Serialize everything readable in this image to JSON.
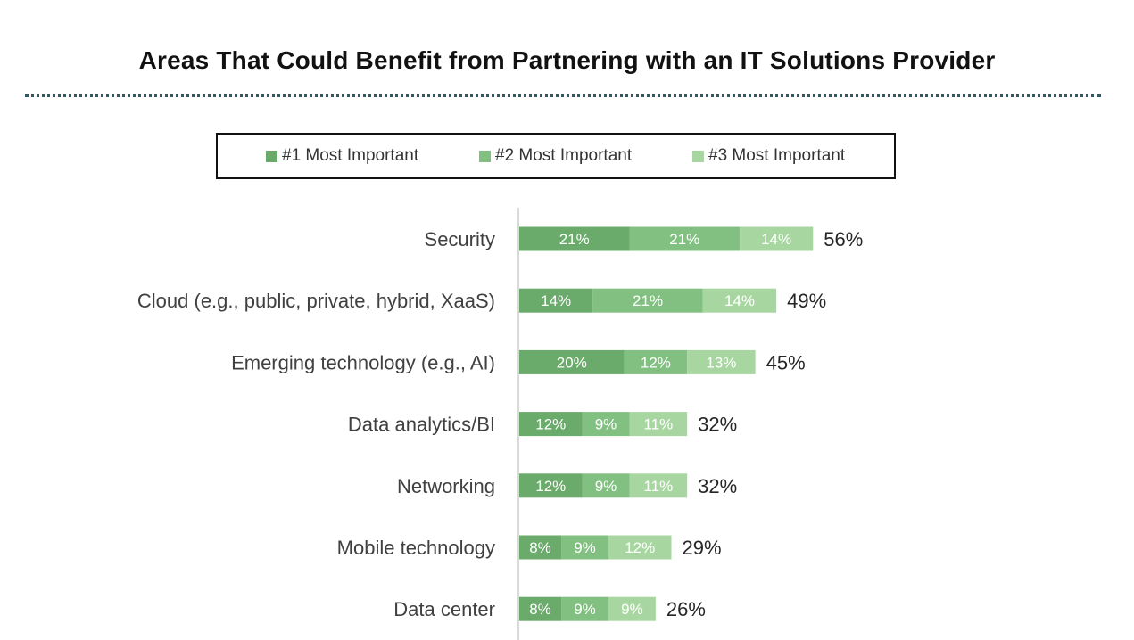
{
  "colors": {
    "first": "#6aaa6a",
    "second": "#82c082",
    "third": "#a8d6a0",
    "axis": "#d9d9d9"
  },
  "chart_data": {
    "type": "bar",
    "orientation": "horizontal",
    "stacked": true,
    "title": "Areas That Could Benefit from Partnering with an IT Solutions Provider",
    "xlabel": "",
    "ylabel": "",
    "legend_position": "top",
    "grid": false,
    "categories": [
      "Security",
      "Cloud (e.g., public, private, hybrid, XaaS)",
      "Emerging technology (e.g., AI)",
      "Data analytics/BI",
      "Networking",
      "Mobile technology",
      "Data center"
    ],
    "series": [
      {
        "name": "#1 Most Important",
        "values": [
          21,
          14,
          20,
          12,
          12,
          8,
          8
        ],
        "labels": [
          "21%",
          "14%",
          "20%",
          "12%",
          "12%",
          "8%",
          "8%"
        ]
      },
      {
        "name": "#2 Most Important",
        "values": [
          21,
          21,
          12,
          9,
          9,
          9,
          9
        ],
        "labels": [
          "21%",
          "21%",
          "12%",
          "9%",
          "9%",
          "9%",
          "9%"
        ]
      },
      {
        "name": "#3 Most Important",
        "values": [
          14,
          14,
          13,
          11,
          11,
          12,
          9
        ],
        "labels": [
          "14%",
          "14%",
          "13%",
          "11%",
          "11%",
          "12%",
          "9%"
        ]
      }
    ],
    "totals": [
      56,
      49,
      45,
      32,
      32,
      29,
      26
    ],
    "total_labels": [
      "56%",
      "49%",
      "45%",
      "32%",
      "32%",
      "29%",
      "26%"
    ]
  }
}
